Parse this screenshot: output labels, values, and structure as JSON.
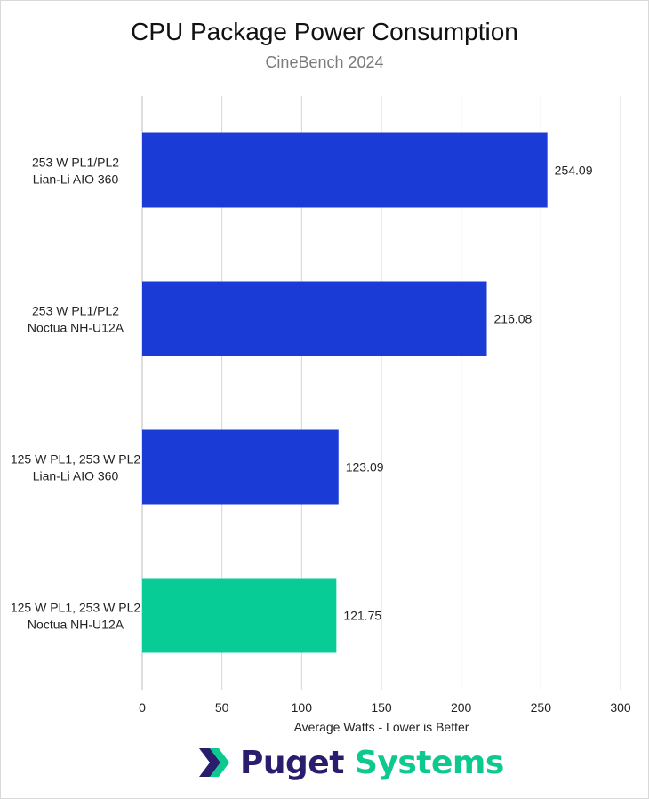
{
  "title": "CPU Package Power Consumption",
  "subtitle": "CineBench 2024",
  "logo": {
    "icon": "puget-chevron-logo-icon",
    "word1": "Puget",
    "word2": "Systems",
    "colors": {
      "dark": "#2b1d6e",
      "green": "#0dc98f"
    }
  },
  "chart_data": {
    "type": "bar",
    "orientation": "horizontal",
    "title": "CPU Package Power Consumption",
    "subtitle": "CineBench 2024",
    "xlabel": "Average Watts - Lower is Better",
    "ylabel": "",
    "xlim": [
      0,
      300
    ],
    "xticks": [
      0,
      50,
      100,
      150,
      200,
      250,
      300
    ],
    "grid": "vertical",
    "legend": "none",
    "categories": [
      [
        "253 W PL1/PL2",
        "Lian-Li AIO 360"
      ],
      [
        "253 W PL1/PL2",
        "Noctua NH-U12A"
      ],
      [
        "125 W PL1, 253 W PL2",
        "Lian-Li AIO 360"
      ],
      [
        "125 W PL1, 253 W PL2",
        "Noctua NH-U12A"
      ]
    ],
    "values": [
      254.09,
      216.08,
      123.09,
      121.75
    ],
    "value_labels": [
      "254.09",
      "216.08",
      "123.09",
      "121.75"
    ],
    "colors": [
      "#1a3bd6",
      "#1a3bd6",
      "#1a3bd6",
      "#08cc96"
    ]
  }
}
